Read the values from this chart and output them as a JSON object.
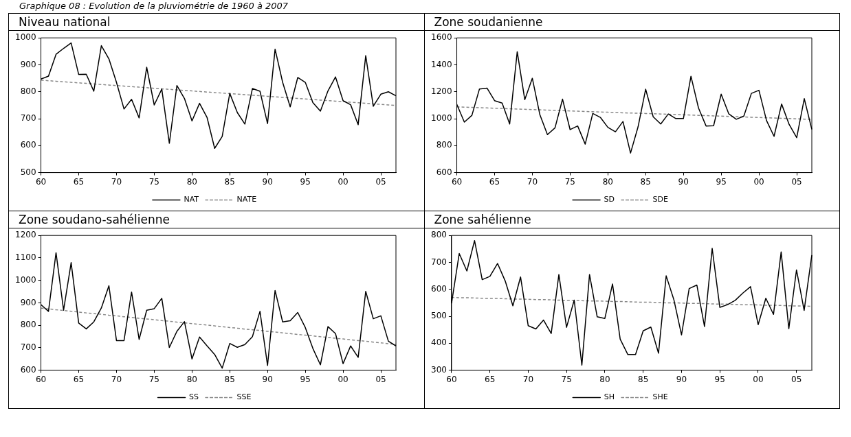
{
  "chart_data": [
    {
      "type": "line",
      "title": "Niveau national",
      "annotations": [
        "Graphique 08 : Evolution de la pluviométrie de 1960 à 2007"
      ],
      "x": [
        1960,
        1961,
        1962,
        1963,
        1964,
        1965,
        1966,
        1967,
        1968,
        1969,
        1970,
        1971,
        1972,
        1973,
        1974,
        1975,
        1976,
        1977,
        1978,
        1979,
        1980,
        1981,
        1982,
        1983,
        1984,
        1985,
        1986,
        1987,
        1988,
        1989,
        1990,
        1991,
        1992,
        1993,
        1994,
        1995,
        1996,
        1997,
        1998,
        1999,
        2000,
        2001,
        2002,
        2003,
        2004,
        2005,
        2006,
        2007
      ],
      "series": [
        {
          "name": "NAT",
          "color": "#000000",
          "line_style": "solid",
          "values": [
            847,
            858,
            939,
            961,
            981,
            864,
            865,
            802,
            971,
            922,
            835,
            736,
            772,
            703,
            891,
            751,
            810,
            609,
            823,
            775,
            692,
            757,
            704,
            590,
            634,
            794,
            723,
            680,
            812,
            802,
            682,
            958,
            835,
            744,
            853,
            835,
            760,
            728,
            803,
            855,
            767,
            752,
            678,
            934,
            746,
            791,
            800,
            785
          ]
        },
        {
          "name": "NATE",
          "color": "#888888",
          "line_style": "dashed",
          "values": [
            843,
            841,
            839,
            837,
            835,
            833,
            831,
            829,
            827,
            825,
            823,
            821,
            819,
            817,
            815,
            813,
            811,
            809,
            807,
            805,
            803,
            801,
            799,
            797,
            795,
            793,
            791,
            789,
            787,
            785,
            783,
            781,
            779,
            777,
            775,
            773,
            771,
            769,
            767,
            765,
            763,
            761,
            759,
            757,
            755,
            753,
            751,
            749
          ]
        }
      ],
      "xlim": [
        1960,
        2007
      ],
      "xticks": [
        {
          "value": 1960,
          "label": "60"
        },
        {
          "value": 1965,
          "label": "65"
        },
        {
          "value": 1970,
          "label": "70"
        },
        {
          "value": 1975,
          "label": "75"
        },
        {
          "value": 1980,
          "label": "80"
        },
        {
          "value": 1985,
          "label": "85"
        },
        {
          "value": 1990,
          "label": "90"
        },
        {
          "value": 1995,
          "label": "95"
        },
        {
          "value": 2000,
          "label": "00"
        },
        {
          "value": 2005,
          "label": "05"
        }
      ],
      "ylim": [
        500,
        1000
      ],
      "yticks": [
        500,
        600,
        700,
        800,
        900,
        1000
      ],
      "legend": "bottom",
      "marker": "none",
      "grid": false
    },
    {
      "type": "line",
      "title": "Zone soudanienne",
      "x": [
        1960,
        1961,
        1962,
        1963,
        1964,
        1965,
        1966,
        1967,
        1968,
        1969,
        1970,
        1971,
        1972,
        1973,
        1974,
        1975,
        1976,
        1977,
        1978,
        1979,
        1980,
        1981,
        1982,
        1983,
        1984,
        1985,
        1986,
        1987,
        1988,
        1989,
        1990,
        1991,
        1992,
        1993,
        1994,
        1995,
        1996,
        1997,
        1998,
        1999,
        2000,
        2001,
        2002,
        2003,
        2004,
        2005,
        2006,
        2007
      ],
      "series": [
        {
          "name": "SD",
          "color": "#000000",
          "line_style": "solid",
          "values": [
            1107,
            975,
            1025,
            1221,
            1227,
            1134,
            1116,
            961,
            1497,
            1141,
            1300,
            1029,
            882,
            932,
            1145,
            919,
            946,
            811,
            1039,
            1010,
            936,
            903,
            979,
            745,
            940,
            1219,
            1014,
            961,
            1035,
            1001,
            1001,
            1315,
            1079,
            946,
            948,
            1182,
            1037,
            996,
            1019,
            1188,
            1211,
            987,
            869,
            1109,
            957,
            859,
            1149,
            921
          ]
        },
        {
          "name": "SDE",
          "color": "#888888",
          "line_style": "dashed",
          "values": [
            1088,
            1086,
            1084,
            1082,
            1080,
            1078,
            1076,
            1074,
            1072,
            1070,
            1068,
            1066,
            1064,
            1062,
            1060,
            1058,
            1056,
            1054,
            1052,
            1050,
            1048,
            1046,
            1044,
            1042,
            1041,
            1039,
            1037,
            1035,
            1033,
            1031,
            1029,
            1027,
            1025,
            1023,
            1021,
            1019,
            1017,
            1015,
            1013,
            1011,
            1009,
            1007,
            1005,
            1003,
            1001,
            999,
            997,
            995
          ]
        }
      ],
      "xlim": [
        1960,
        2007
      ],
      "xticks": [
        {
          "value": 1960,
          "label": "60"
        },
        {
          "value": 1965,
          "label": "65"
        },
        {
          "value": 1970,
          "label": "70"
        },
        {
          "value": 1975,
          "label": "75"
        },
        {
          "value": 1980,
          "label": "80"
        },
        {
          "value": 1985,
          "label": "85"
        },
        {
          "value": 1990,
          "label": "90"
        },
        {
          "value": 1995,
          "label": "95"
        },
        {
          "value": 2000,
          "label": "00"
        },
        {
          "value": 2005,
          "label": "05"
        }
      ],
      "ylim": [
        600,
        1600
      ],
      "yticks": [
        600,
        800,
        1000,
        1200,
        1400,
        1600
      ],
      "legend": "bottom",
      "marker": "none",
      "grid": false
    },
    {
      "type": "line",
      "title": "Zone soudano-sahélienne",
      "x": [
        1960,
        1961,
        1962,
        1963,
        1964,
        1965,
        1966,
        1967,
        1968,
        1969,
        1970,
        1971,
        1972,
        1973,
        1974,
        1975,
        1976,
        1977,
        1978,
        1979,
        1980,
        1981,
        1982,
        1983,
        1984,
        1985,
        1986,
        1987,
        1988,
        1989,
        1990,
        1991,
        1992,
        1993,
        1994,
        1995,
        1996,
        1997,
        1998,
        1999,
        2000,
        2001,
        2002,
        2003,
        2004,
        2005,
        2006,
        2007
      ],
      "series": [
        {
          "name": "SS",
          "color": "#000000",
          "line_style": "solid",
          "values": [
            892,
            862,
            1123,
            867,
            1079,
            810,
            784,
            815,
            877,
            976,
            732,
            732,
            948,
            737,
            867,
            874,
            920,
            701,
            773,
            816,
            650,
            748,
            708,
            670,
            609,
            719,
            702,
            714,
            749,
            862,
            621,
            955,
            815,
            820,
            857,
            790,
            697,
            624,
            794,
            763,
            629,
            708,
            657,
            951,
            829,
            842,
            729,
            708
          ]
        },
        {
          "name": "SSE",
          "color": "#888888",
          "line_style": "dashed",
          "values": [
            876,
            873,
            869,
            866,
            862,
            859,
            855,
            852,
            849,
            845,
            842,
            838,
            835,
            831,
            828,
            825,
            821,
            818,
            814,
            811,
            807,
            804,
            801,
            797,
            794,
            790,
            787,
            783,
            780,
            777,
            773,
            770,
            766,
            763,
            759,
            756,
            753,
            749,
            746,
            742,
            739,
            735,
            732,
            729,
            725,
            722,
            718,
            715
          ]
        }
      ],
      "xlim": [
        1960,
        2007
      ],
      "xticks": [
        {
          "value": 1960,
          "label": "60"
        },
        {
          "value": 1965,
          "label": "65"
        },
        {
          "value": 1970,
          "label": "70"
        },
        {
          "value": 1975,
          "label": "75"
        },
        {
          "value": 1980,
          "label": "80"
        },
        {
          "value": 1985,
          "label": "85"
        },
        {
          "value": 1990,
          "label": "90"
        },
        {
          "value": 1995,
          "label": "95"
        },
        {
          "value": 2000,
          "label": "00"
        },
        {
          "value": 2005,
          "label": "05"
        }
      ],
      "ylim": [
        600,
        1200
      ],
      "yticks": [
        600,
        700,
        800,
        900,
        1000,
        1100,
        1200
      ],
      "legend": "bottom",
      "marker": "none",
      "grid": false
    },
    {
      "type": "line",
      "title": "Zone sahélienne",
      "x": [
        1960,
        1961,
        1962,
        1963,
        1964,
        1965,
        1966,
        1967,
        1968,
        1969,
        1970,
        1971,
        1972,
        1973,
        1974,
        1975,
        1976,
        1977,
        1978,
        1979,
        1980,
        1981,
        1982,
        1983,
        1984,
        1985,
        1986,
        1987,
        1988,
        1989,
        1990,
        1991,
        1992,
        1993,
        1994,
        1995,
        1996,
        1997,
        1998,
        1999,
        2000,
        2001,
        2002,
        2003,
        2004,
        2005,
        2006,
        2007
      ],
      "series": [
        {
          "name": "SH",
          "color": "#000000",
          "line_style": "solid",
          "values": [
            548,
            733,
            668,
            781,
            636,
            648,
            696,
            631,
            539,
            646,
            465,
            453,
            486,
            436,
            655,
            459,
            560,
            319,
            655,
            498,
            492,
            620,
            415,
            358,
            358,
            446,
            460,
            363,
            650,
            562,
            431,
            603,
            616,
            462,
            752,
            533,
            543,
            559,
            586,
            610,
            469,
            567,
            507,
            739,
            454,
            672,
            522,
            727
          ]
        },
        {
          "name": "SHE",
          "color": "#888888",
          "line_style": "dashed",
          "values": [
            570,
            569,
            569,
            568,
            567,
            566,
            566,
            565,
            564,
            564,
            563,
            562,
            562,
            561,
            560,
            559,
            559,
            558,
            557,
            557,
            556,
            555,
            555,
            554,
            553,
            552,
            552,
            551,
            550,
            550,
            549,
            548,
            548,
            547,
            546,
            545,
            545,
            544,
            543,
            543,
            542,
            541,
            541,
            540,
            539,
            538,
            538,
            537
          ]
        }
      ],
      "xlim": [
        1960,
        2007
      ],
      "xticks": [
        {
          "value": 1960,
          "label": "60"
        },
        {
          "value": 1965,
          "label": "65"
        },
        {
          "value": 1970,
          "label": "70"
        },
        {
          "value": 1975,
          "label": "75"
        },
        {
          "value": 1980,
          "label": "80"
        },
        {
          "value": 1985,
          "label": "85"
        },
        {
          "value": 1990,
          "label": "90"
        },
        {
          "value": 1995,
          "label": "95"
        },
        {
          "value": 2000,
          "label": "00"
        },
        {
          "value": 2005,
          "label": "05"
        }
      ],
      "ylim": [
        300,
        800
      ],
      "yticks": [
        300,
        400,
        500,
        600,
        700,
        800
      ],
      "legend": "bottom",
      "marker": "none",
      "grid": false
    }
  ]
}
